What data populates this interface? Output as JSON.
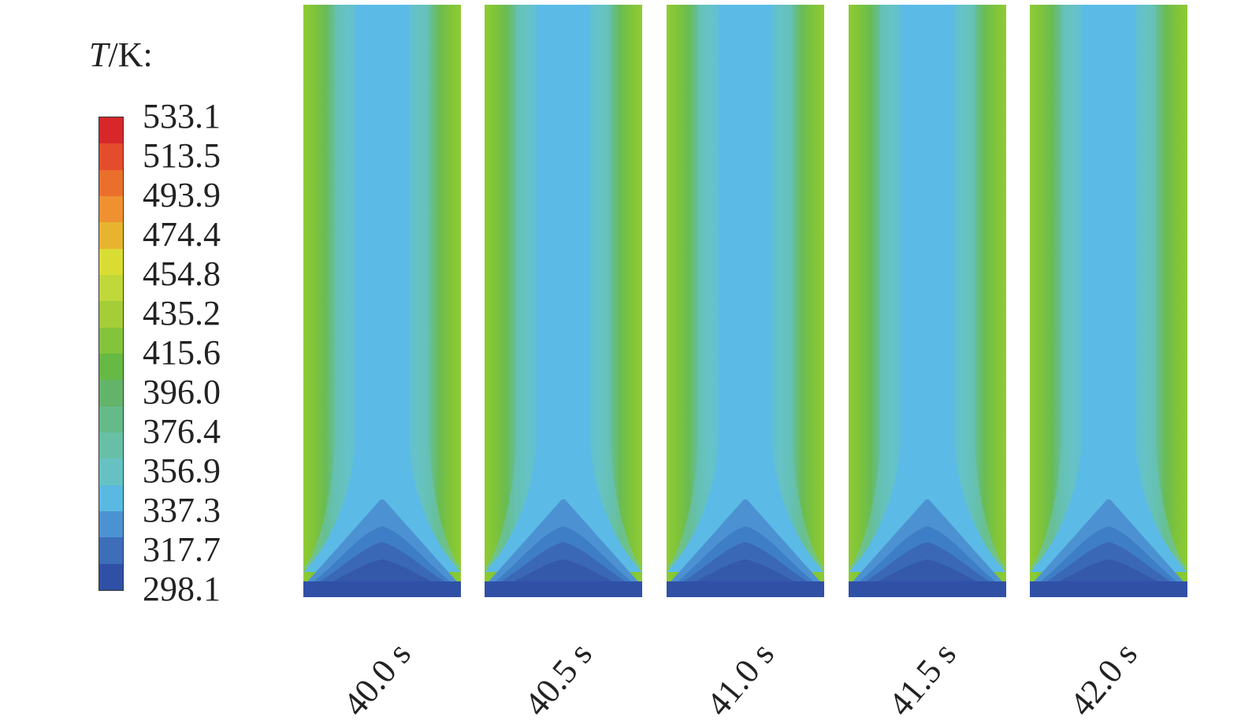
{
  "legend": {
    "title_var": "T",
    "title_rest": "/K:",
    "ticks": [
      "533.1",
      "513.5",
      "493.9",
      "474.4",
      "454.8",
      "435.2",
      "415.6",
      "396.0",
      "376.4",
      "356.9",
      "337.3",
      "317.7",
      "298.1"
    ],
    "colors": [
      "#d7272a",
      "#e44d2b",
      "#ea6f2c",
      "#ef9130",
      "#e7b42f",
      "#d9dd33",
      "#c0d83a",
      "#a4cd38",
      "#84c43c",
      "#66b944",
      "#63b46a",
      "#64bb89",
      "#67c0a6",
      "#66c2c2",
      "#5ab9e1",
      "#4c92d2",
      "#3e6dba",
      "#3050a6"
    ]
  },
  "panels": [
    {
      "time": "40.0 s"
    },
    {
      "time": "40.5 s"
    },
    {
      "time": "41.0 s"
    },
    {
      "time": "41.5 s"
    },
    {
      "time": "42.0 s"
    }
  ]
}
